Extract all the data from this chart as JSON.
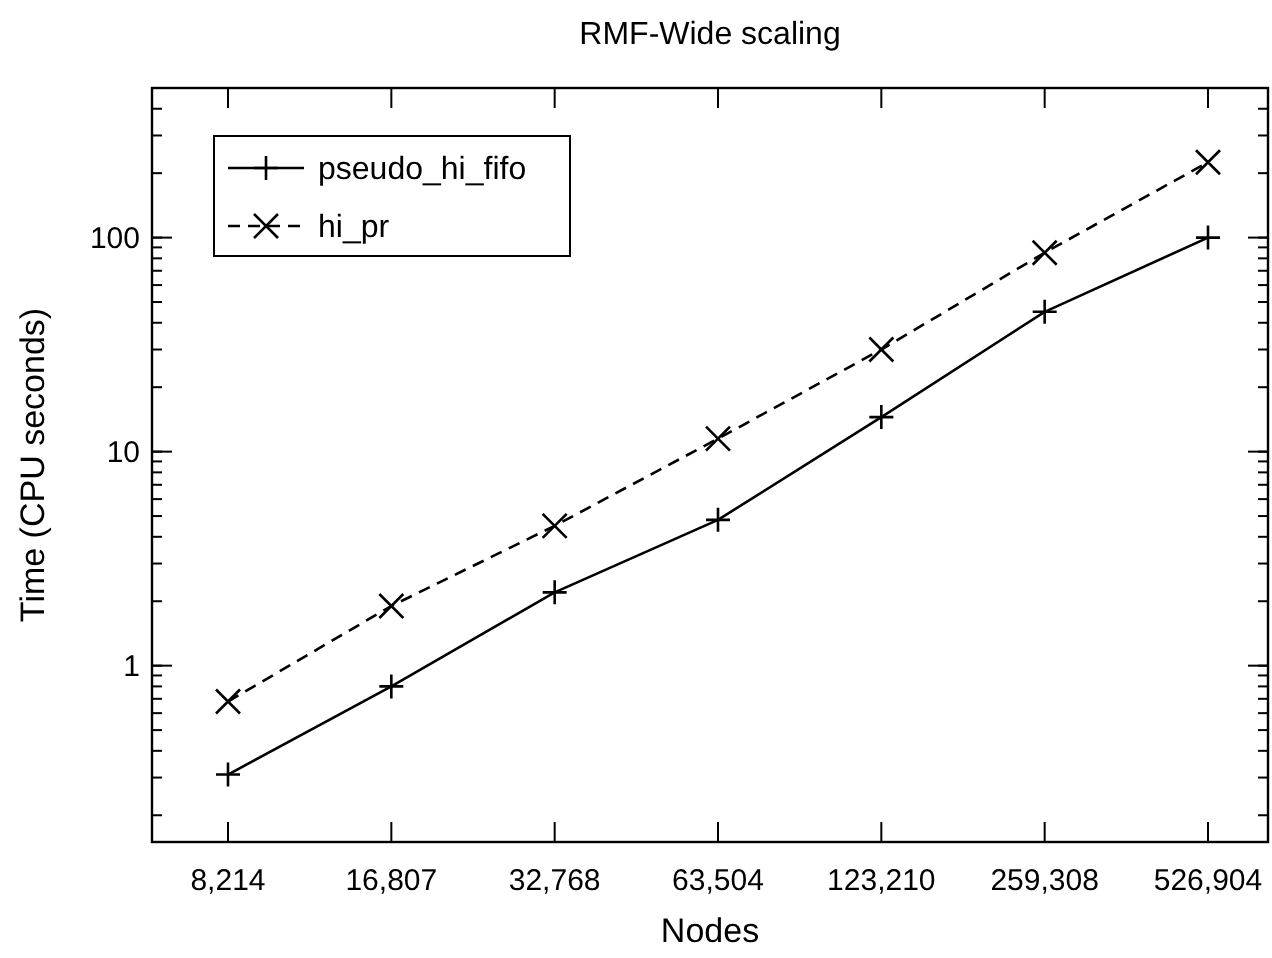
{
  "chart_data": {
    "type": "line",
    "title": "RMF-Wide scaling",
    "xlabel": "Nodes",
    "ylabel": "Time (CPU seconds)",
    "categories": [
      "8,214",
      "16,807",
      "32,768",
      "63,504",
      "123,210",
      "259,308",
      "526,904"
    ],
    "series": [
      {
        "name": "pseudo_hi_fifo",
        "color": "#000000",
        "marker": "plus",
        "line_style": "solid",
        "values": [
          0.31,
          0.8,
          2.2,
          4.8,
          14.5,
          45,
          100
        ]
      },
      {
        "name": "hi_pr",
        "color": "#000000",
        "marker": "cross",
        "line_style": "dashed",
        "values": [
          0.68,
          1.9,
          4.5,
          11.5,
          30,
          85,
          225
        ]
      }
    ],
    "log": "y",
    "ylim": [
      0.15,
      500
    ],
    "yticks": [
      1,
      10,
      100
    ],
    "grid": false,
    "legend": "top left"
  }
}
